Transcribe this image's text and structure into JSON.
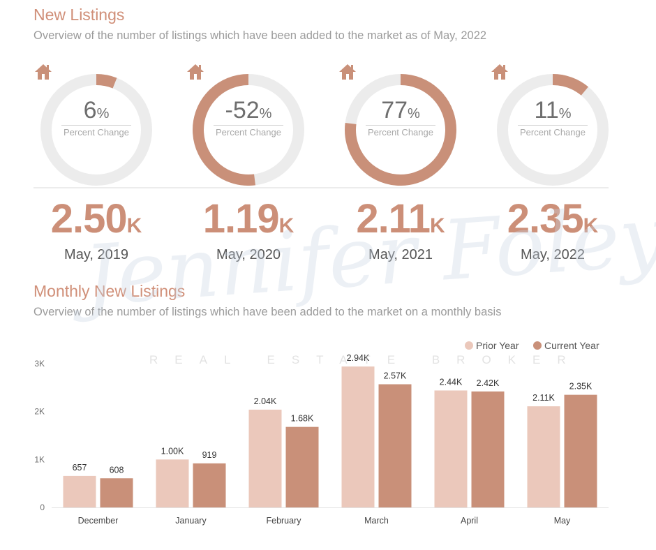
{
  "header": {
    "title": "New Listings",
    "subtitle": "Overview of the number of listings which have been added to the market as of May, 2022"
  },
  "gauges": [
    {
      "value": 6,
      "value_label": "6",
      "pct_sign": "%",
      "label": "Percent Change"
    },
    {
      "value": -52,
      "value_label": "-52",
      "pct_sign": "%",
      "label": "Percent Change"
    },
    {
      "value": 77,
      "value_label": "77",
      "pct_sign": "%",
      "label": "Percent Change"
    },
    {
      "value": 11,
      "value_label": "11",
      "pct_sign": "%",
      "label": "Percent Change"
    }
  ],
  "totals": [
    {
      "value": "2.50",
      "unit": "K",
      "period": "May, 2019"
    },
    {
      "value": "1.19",
      "unit": "K",
      "period": "May, 2020"
    },
    {
      "value": "2.11",
      "unit": "K",
      "period": "May, 2021"
    },
    {
      "value": "2.35",
      "unit": "K",
      "period": "May, 2022"
    }
  ],
  "section2": {
    "title": "Monthly New Listings",
    "subtitle": "Overview of the number of listings which have been added to the market on a monthly basis"
  },
  "watermark": {
    "name": "Jennifer Foley",
    "tagline": "REAL ESTATE BROKER"
  },
  "colors": {
    "accent": "#cc8f78",
    "prior": "#ebc8bb",
    "current": "#c99079",
    "track": "#ececec"
  },
  "chart_data": {
    "type": "bar",
    "categories": [
      "December",
      "January",
      "February",
      "March",
      "April",
      "May"
    ],
    "series": [
      {
        "name": "Prior Year",
        "values": [
          657,
          1000,
          2040,
          2940,
          2440,
          2110
        ],
        "labels": [
          "657",
          "1.00K",
          "2.04K",
          "2.94K",
          "2.44K",
          "2.11K"
        ]
      },
      {
        "name": "Current Year",
        "values": [
          608,
          919,
          1680,
          2570,
          2420,
          2350
        ],
        "labels": [
          "608",
          "919",
          "1.68K",
          "2.57K",
          "2.42K",
          "2.35K"
        ]
      }
    ],
    "y_ticks": [
      0,
      1000,
      2000,
      3000
    ],
    "y_tick_labels": [
      "0",
      "1K",
      "2K",
      "3K"
    ],
    "ylim": [
      0,
      3000
    ],
    "legend": "top-right",
    "grid": false
  }
}
